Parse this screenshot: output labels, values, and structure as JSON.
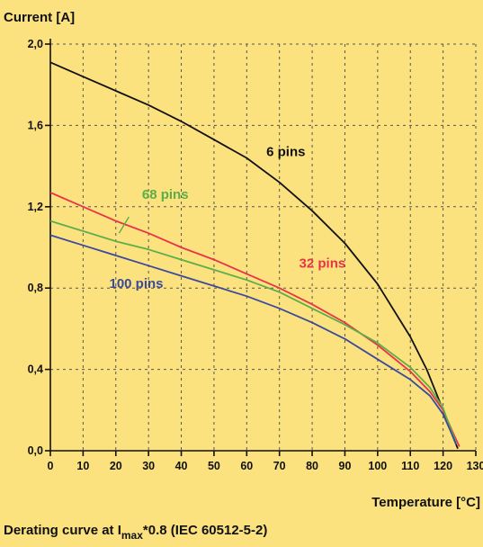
{
  "chart_data": {
    "type": "line",
    "ylabel": "Current [A]",
    "xlabel": "Temperature [°C]",
    "caption": {
      "prefix": "Derating curve at I",
      "subscript": "max",
      "suffix": "*0.8 (IEC 60512-5-2)"
    },
    "xlim": [
      0,
      130
    ],
    "ylim": [
      0,
      2.0
    ],
    "x_ticks": [
      0,
      10,
      20,
      30,
      40,
      50,
      60,
      70,
      80,
      90,
      100,
      110,
      120,
      130
    ],
    "x_tick_labels": [
      "0",
      "10",
      "20",
      "30",
      "40",
      "50",
      "60",
      "70",
      "80",
      "90",
      "100",
      "110",
      "120",
      "130"
    ],
    "y_ticks": [
      0,
      0.4,
      0.8,
      1.2,
      1.6,
      2.0
    ],
    "y_tick_labels": [
      "0,0",
      "0,4",
      "0,8",
      "1,2",
      "1,6",
      "2,0"
    ],
    "grid": true,
    "series": [
      {
        "name": "6 pins",
        "color": "#111111",
        "label_at": [
          66,
          1.45
        ],
        "points": [
          [
            0,
            1.91
          ],
          [
            10,
            1.84
          ],
          [
            20,
            1.77
          ],
          [
            30,
            1.7
          ],
          [
            40,
            1.62
          ],
          [
            50,
            1.53
          ],
          [
            60,
            1.44
          ],
          [
            70,
            1.32
          ],
          [
            80,
            1.18
          ],
          [
            90,
            1.02
          ],
          [
            100,
            0.82
          ],
          [
            110,
            0.56
          ],
          [
            115,
            0.4
          ],
          [
            120,
            0.2
          ],
          [
            123,
            0.07
          ],
          [
            124.5,
            0.01
          ]
        ]
      },
      {
        "name": "32 pins",
        "color": "#e8334a",
        "label_at": [
          76,
          0.9
        ],
        "points": [
          [
            0,
            1.27
          ],
          [
            10,
            1.2
          ],
          [
            20,
            1.13
          ],
          [
            30,
            1.07
          ],
          [
            40,
            1.0
          ],
          [
            50,
            0.94
          ],
          [
            60,
            0.87
          ],
          [
            70,
            0.8
          ],
          [
            80,
            0.72
          ],
          [
            90,
            0.63
          ],
          [
            100,
            0.52
          ],
          [
            110,
            0.39
          ],
          [
            116,
            0.29
          ],
          [
            120,
            0.2
          ],
          [
            123,
            0.09
          ],
          [
            125,
            0.02
          ]
        ]
      },
      {
        "name": "68 pins",
        "color": "#5cae48",
        "label_at": [
          28,
          1.24
        ],
        "points": [
          [
            0,
            1.13
          ],
          [
            10,
            1.08
          ],
          [
            20,
            1.03
          ],
          [
            30,
            0.99
          ],
          [
            40,
            0.94
          ],
          [
            50,
            0.89
          ],
          [
            60,
            0.84
          ],
          [
            70,
            0.78
          ],
          [
            80,
            0.7
          ],
          [
            90,
            0.62
          ],
          [
            100,
            0.53
          ],
          [
            110,
            0.41
          ],
          [
            116,
            0.31
          ],
          [
            120,
            0.21
          ],
          [
            122,
            0.12
          ],
          [
            124,
            0.04
          ]
        ]
      },
      {
        "name": "100 pins",
        "color": "#3b4a9c",
        "label_at": [
          18,
          0.8
        ],
        "points": [
          [
            0,
            1.06
          ],
          [
            10,
            1.01
          ],
          [
            20,
            0.96
          ],
          [
            30,
            0.91
          ],
          [
            40,
            0.86
          ],
          [
            50,
            0.81
          ],
          [
            60,
            0.76
          ],
          [
            70,
            0.7
          ],
          [
            80,
            0.63
          ],
          [
            90,
            0.55
          ],
          [
            100,
            0.45
          ],
          [
            110,
            0.35
          ],
          [
            116,
            0.27
          ],
          [
            120,
            0.18
          ],
          [
            123,
            0.07
          ],
          [
            124,
            0.03
          ]
        ]
      }
    ],
    "pointer_68": [
      [
        24,
        1.15
      ],
      [
        21,
        1.07
      ]
    ]
  }
}
